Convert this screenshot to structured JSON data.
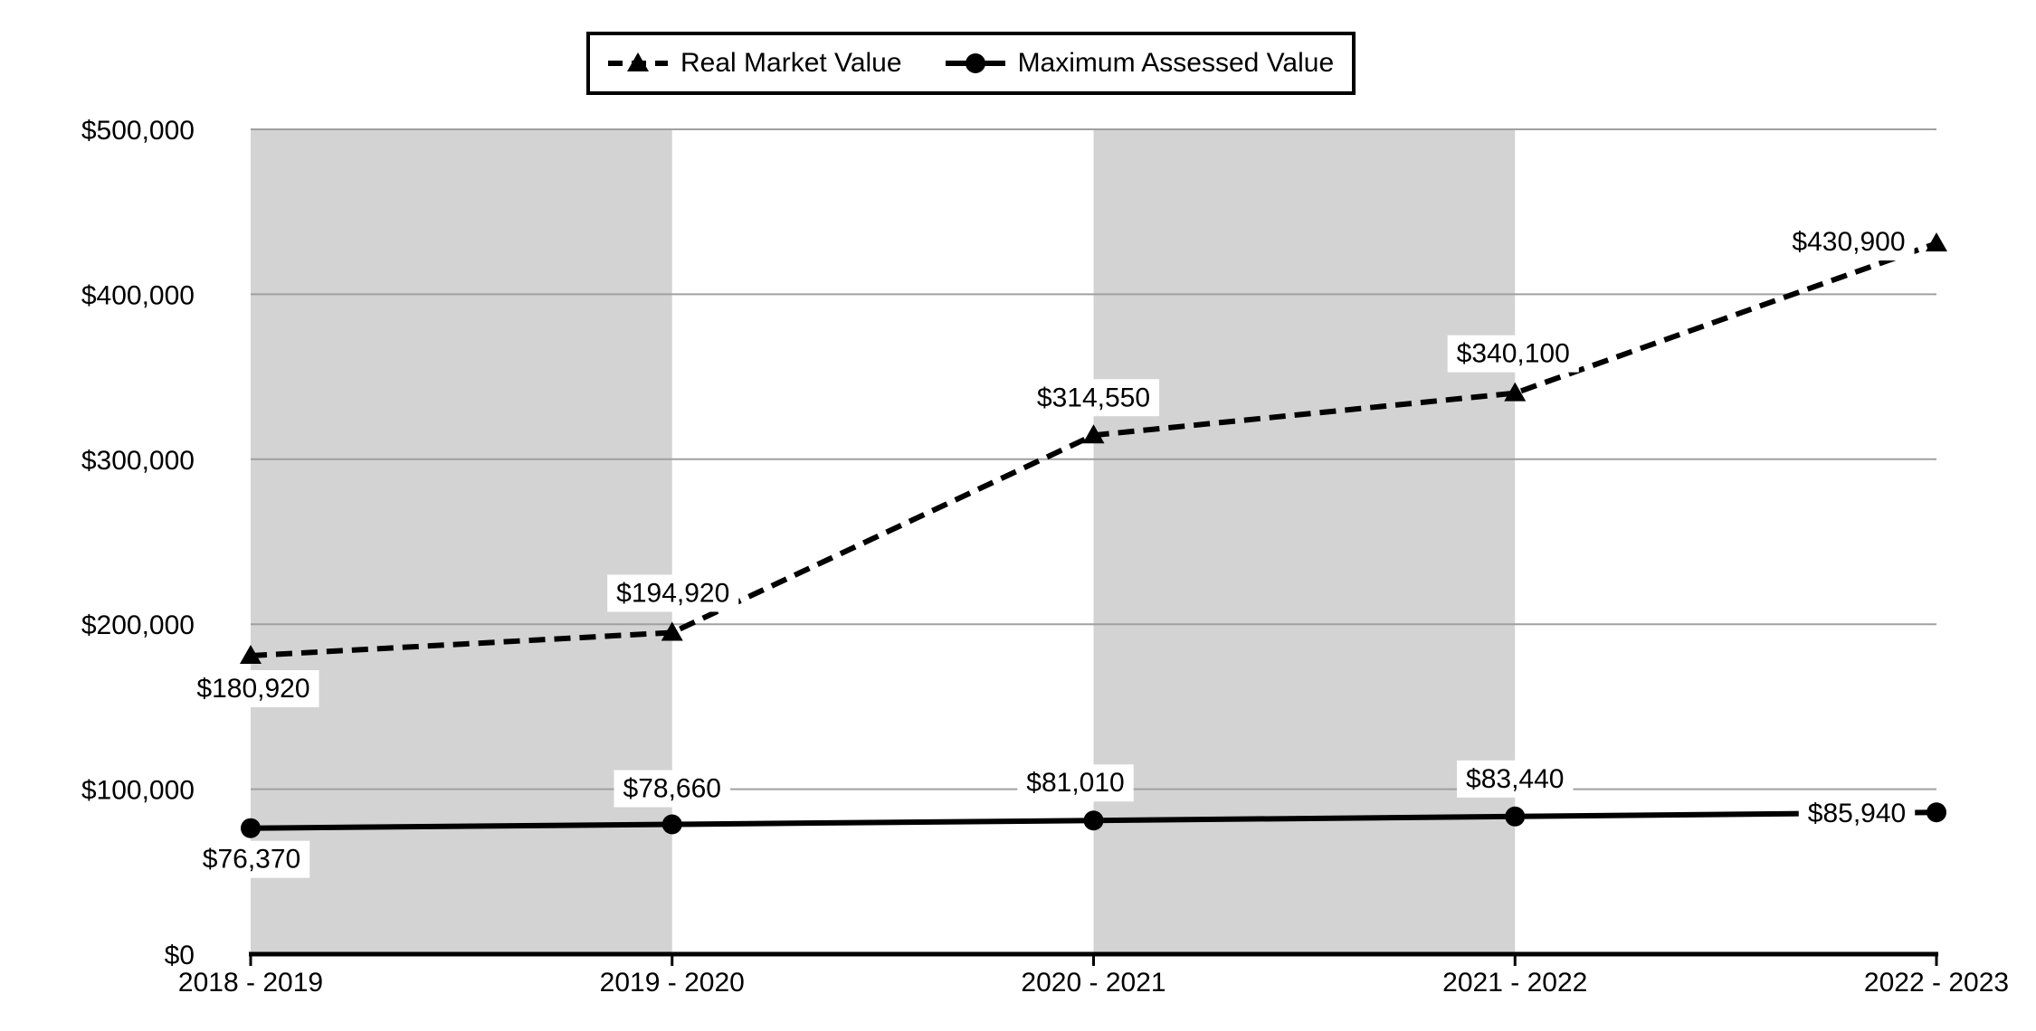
{
  "chart_data": {
    "type": "line",
    "title": "",
    "categories": [
      "2018 - 2019",
      "2019 - 2020",
      "2020 - 2021",
      "2021 - 2022",
      "2022 - 2023"
    ],
    "ylim": [
      0,
      500000
    ],
    "y_ticks": [
      {
        "value": 0,
        "label": "$0"
      },
      {
        "value": 100000,
        "label": "$100,000"
      },
      {
        "value": 200000,
        "label": "$200,000"
      },
      {
        "value": 300000,
        "label": "$300,000"
      },
      {
        "value": 400000,
        "label": "$400,000"
      },
      {
        "value": 500000,
        "label": "$500,000"
      }
    ],
    "grid": "horizontal",
    "legend_position": "top",
    "shaded_bands": [
      [
        0,
        1
      ],
      [
        2,
        3
      ]
    ],
    "series": [
      {
        "name": "Real Market Value",
        "style": "dashed",
        "marker": "triangle",
        "color": "#000000",
        "values": [
          180920,
          194920,
          314550,
          340100,
          430900
        ],
        "labels": [
          "$180,920",
          "$194,920",
          "$314,550",
          "$340,100",
          "$430,900"
        ]
      },
      {
        "name": "Maximum Assessed Value",
        "style": "solid",
        "marker": "circle",
        "color": "#000000",
        "values": [
          76370,
          78660,
          81010,
          83440,
          85940
        ],
        "labels": [
          "$76,370",
          "$78,660",
          "$81,010",
          "$83,440",
          "$85,940"
        ]
      }
    ],
    "colors": {
      "line": "#000000",
      "band": "#d3d3d3",
      "gridline": "#a0a0a0",
      "axis": "#000000",
      "label_bg": "#ffffff",
      "text": "#000000"
    }
  }
}
